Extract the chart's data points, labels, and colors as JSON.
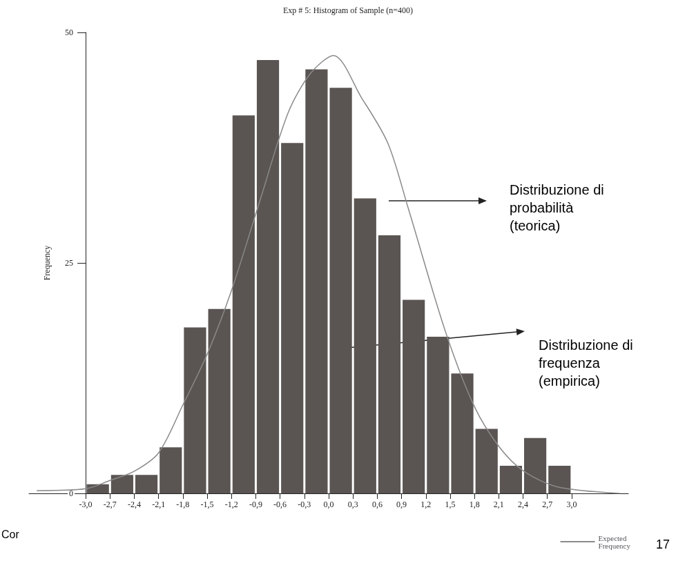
{
  "chart_data": {
    "type": "histogram",
    "title": "Exp # 5: Histogram of Sample (n=400)",
    "ylabel": "Frequency",
    "bins": [
      -3.0,
      -2.7,
      -2.4,
      -2.1,
      -1.8,
      -1.5,
      -1.2,
      -0.9,
      -0.6,
      -0.3,
      0.0,
      0.3,
      0.6,
      0.9,
      1.2,
      1.5,
      1.8,
      2.1,
      2.4,
      2.7,
      3.0
    ],
    "values": [
      1,
      2,
      2,
      5,
      18,
      20,
      41,
      47,
      38,
      46,
      44,
      32,
      28,
      21,
      17,
      13,
      7,
      3,
      6,
      3
    ],
    "color": "#5a5552",
    "series": [
      {
        "type": "line",
        "name": "Expected Frequency",
        "color": "#8a8a8a",
        "x": [
          -3.6,
          -3.0,
          -2.7,
          -2.4,
          -2.1,
          -1.8,
          -1.5,
          -1.2,
          -0.84,
          -0.5,
          -0.22,
          0.06,
          0.4,
          0.73,
          0.98,
          1.44,
          1.8,
          2.11,
          2.41,
          2.83,
          3.59
        ],
        "values": [
          0.3,
          0.5,
          1.4,
          2.4,
          4.4,
          9.6,
          15.1,
          22,
          32,
          41.3,
          45.6,
          47.5,
          43,
          38,
          31,
          17.6,
          9.4,
          5.0,
          2.4,
          0.7,
          0
        ]
      }
    ],
    "xlim": [
      -3.7,
      3.7
    ],
    "xticks": [
      {
        "value": -3.0,
        "label": "-3,0"
      },
      {
        "value": -2.7,
        "label": "-2,7"
      },
      {
        "value": -2.4,
        "label": "-2,4"
      },
      {
        "value": -2.1,
        "label": "-2,1"
      },
      {
        "value": -1.8,
        "label": "-1,8"
      },
      {
        "value": -1.5,
        "label": "-1,5"
      },
      {
        "value": -1.2,
        "label": "-1,2"
      },
      {
        "value": -0.9,
        "label": "-0,9"
      },
      {
        "value": -0.6,
        "label": "-0,6"
      },
      {
        "value": -0.3,
        "label": "-0,3"
      },
      {
        "value": 0.0,
        "label": "0,0"
      },
      {
        "value": 0.3,
        "label": "0,3"
      },
      {
        "value": 0.6,
        "label": "0,6"
      },
      {
        "value": 0.9,
        "label": "0,9"
      },
      {
        "value": 1.2,
        "label": "1,2"
      },
      {
        "value": 1.5,
        "label": "1,5"
      },
      {
        "value": 1.8,
        "label": "1,8"
      },
      {
        "value": 2.1,
        "label": "2,1"
      },
      {
        "value": 2.4,
        "label": "2,4"
      },
      {
        "value": 2.7,
        "label": "2,7"
      },
      {
        "value": 3.0,
        "label": "3,0"
      }
    ],
    "ylim": [
      0,
      50
    ],
    "yticks": [
      0,
      25,
      50
    ],
    "grid": false,
    "legend": "bottom right",
    "annotations": [
      "Distribuzione di\nprobabilità\n(teorica)",
      "Distribuzione di\nfrequenza\n(empirica)",
      "Cor",
      "17"
    ]
  }
}
